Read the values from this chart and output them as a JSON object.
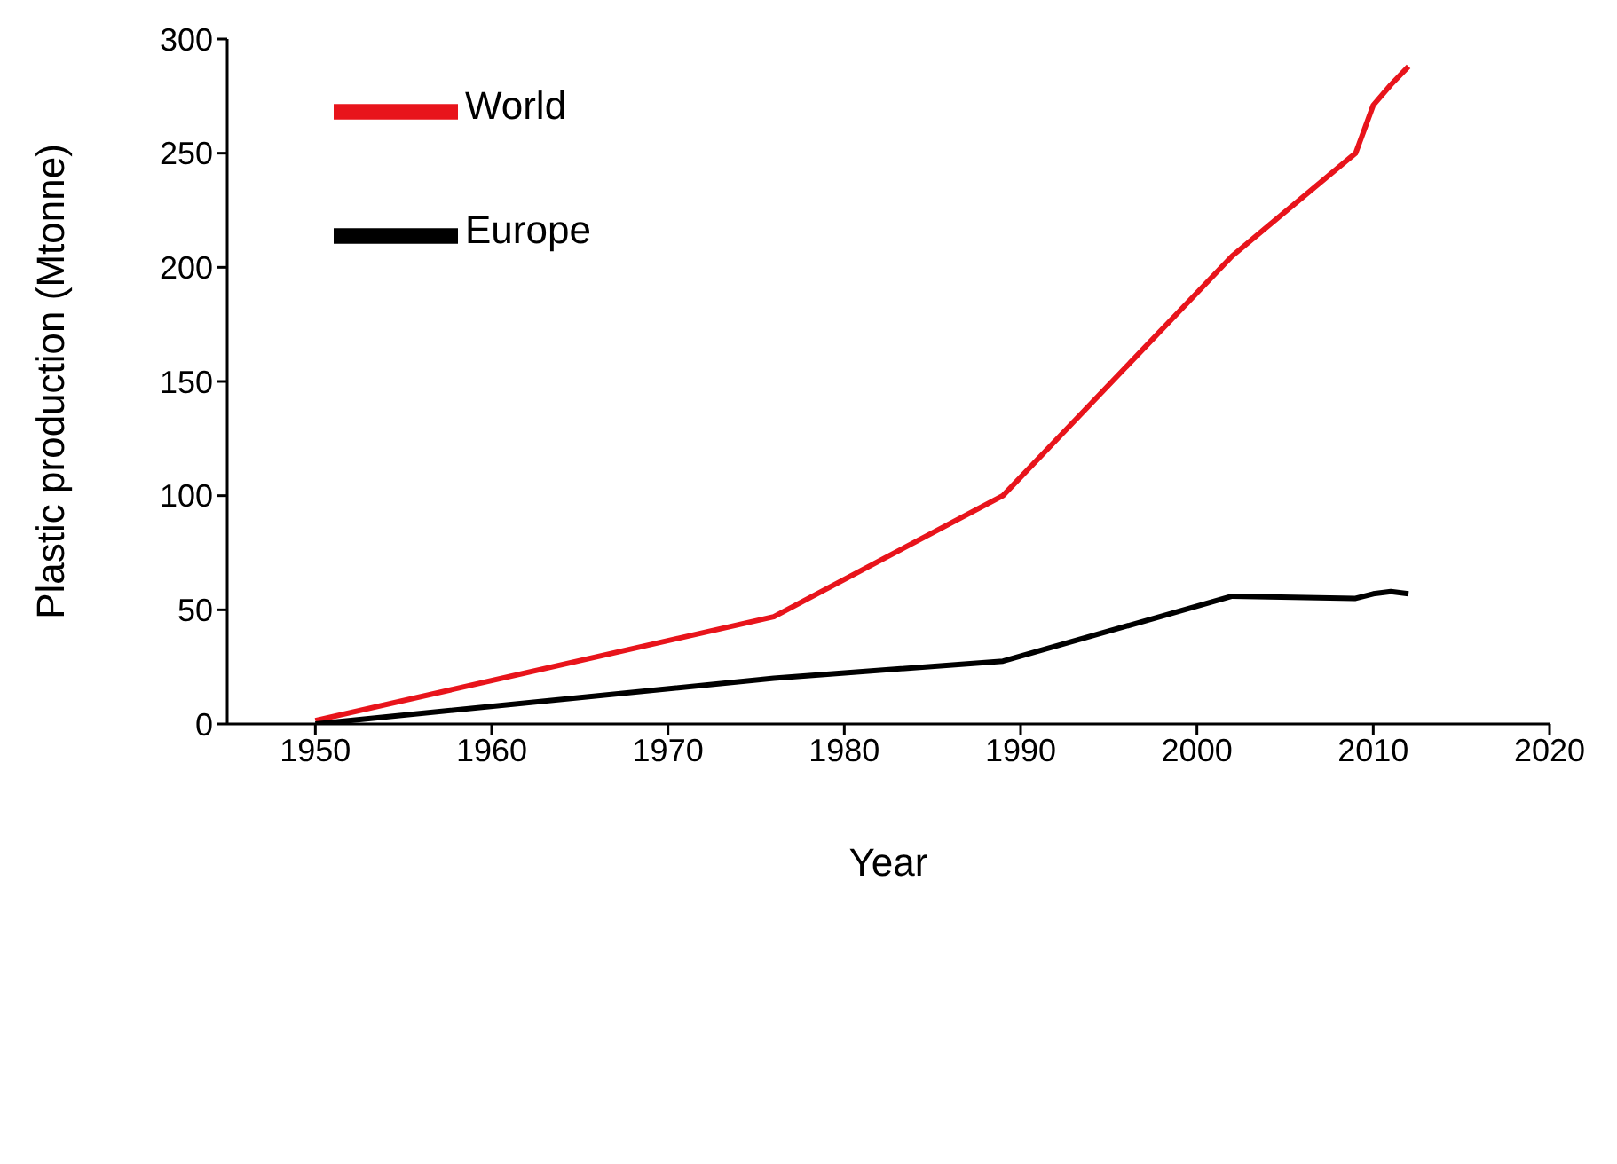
{
  "chart_data": {
    "type": "line",
    "xlabel": "Year",
    "ylabel": "Plastic production (Mtonne)",
    "xlim": [
      1945,
      2020
    ],
    "xticks": [
      1950,
      1960,
      1970,
      1980,
      1990,
      2000,
      2010,
      2020
    ],
    "ylim": [
      0,
      300
    ],
    "yticks": [
      0,
      50,
      100,
      150,
      200,
      250,
      300
    ],
    "legend": "top left",
    "grid": false,
    "marker": "none",
    "line_style": "solid",
    "series": [
      {
        "name": "World",
        "color": "#e8141b",
        "x": [
          1950,
          1976,
          1989,
          2002,
          2009,
          2010,
          2011,
          2012
        ],
        "values": [
          1.5,
          47,
          100,
          205,
          250,
          271,
          280,
          288
        ]
      },
      {
        "name": "Europe",
        "color": "#000000",
        "x": [
          1950,
          1976,
          1989,
          2002,
          2009,
          2010,
          2011,
          2012
        ],
        "values": [
          0,
          20,
          27.5,
          56,
          55,
          57,
          58,
          57
        ]
      }
    ]
  }
}
